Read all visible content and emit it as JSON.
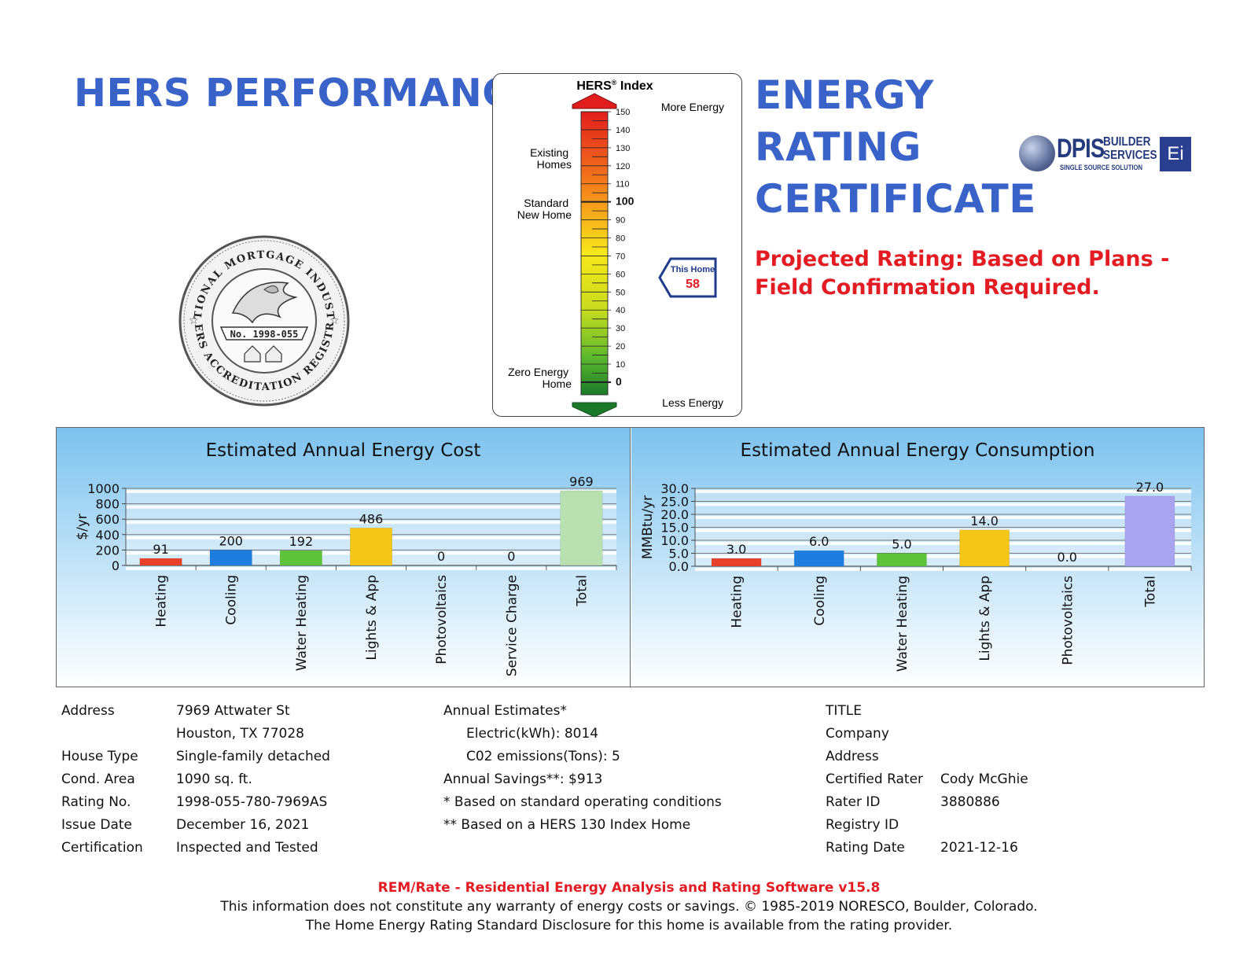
{
  "header": {
    "left_title": "HERS PERFORMANCE",
    "right_title_lines": [
      "ENERGY",
      "RATING",
      "CERTIFICATE"
    ],
    "projected_rating": "Projected Rating: Based on Plans - Field Confirmation Required."
  },
  "logo": {
    "name": "DPIS",
    "tag1": "BUILDER",
    "tag2": "SERVICES",
    "slogan": "SINGLE SOURCE SOLUTION",
    "badge": "Ei"
  },
  "seal": {
    "top_text": "NATIONAL MORTGAGE INDUSTRY",
    "bottom_text": "HERS ACCREDITATION REGISTRY",
    "number": "No. 1998-055"
  },
  "hers_index": {
    "title": "HERS",
    "title_sup": "®",
    "title_suffix": " Index",
    "more_energy": "More Energy",
    "less_energy": "Less Energy",
    "ticks": [
      "150",
      "140",
      "130",
      "120",
      "110",
      "100",
      "90",
      "80",
      "70",
      "60",
      "50",
      "40",
      "30",
      "20",
      "10",
      "0"
    ],
    "side_labels": {
      "existing": [
        "Existing",
        "Homes"
      ],
      "standard": [
        "Standard",
        "New Home"
      ],
      "zero": [
        "Zero Energy",
        "Home"
      ]
    },
    "this_home_label": "This Home",
    "this_home_value": 58
  },
  "cost_chart": {
    "title": "Estimated Annual Energy Cost",
    "ylabel": "$/yr",
    "y_ticks": [
      "1000",
      "800",
      "600",
      "400",
      "200",
      "0"
    ]
  },
  "consumption_chart": {
    "title": "Estimated Annual Energy Consumption",
    "ylabel": "MMBtu/yr",
    "y_ticks": [
      "30.0",
      "25.0",
      "20.0",
      "15.0",
      "10.0",
      "5.0",
      "0.0"
    ]
  },
  "chart_data": [
    {
      "type": "bar",
      "title": "Estimated Annual Energy Cost",
      "ylabel": "$/yr",
      "ylim": [
        0,
        1000
      ],
      "categories": [
        "Heating",
        "Cooling",
        "Water Heating",
        "Lights & App",
        "Photovoltaics",
        "Service Charge",
        "Total"
      ],
      "values": [
        91,
        200,
        192,
        486,
        0,
        0,
        969
      ],
      "colors": [
        "#e8402a",
        "#1e7ee0",
        "#5cc33a",
        "#f5c518",
        "#b0b0b0",
        "#b0b0b0",
        "#b8e0b0"
      ]
    },
    {
      "type": "bar",
      "title": "Estimated Annual Energy Consumption",
      "ylabel": "MMBtu/yr",
      "ylim": [
        0,
        30
      ],
      "categories": [
        "Heating",
        "Cooling",
        "Water Heating",
        "Lights & App",
        "Photovoltaics",
        "Total"
      ],
      "values": [
        3.0,
        6.0,
        5.0,
        14.0,
        0.0,
        27.0
      ],
      "colors": [
        "#e8402a",
        "#1e7ee0",
        "#5cc33a",
        "#f5c518",
        "#b0b0b0",
        "#a9a3f0"
      ]
    }
  ],
  "info_left": [
    {
      "label": "Address",
      "value": "7969 Attwater St"
    },
    {
      "label": "",
      "value": "Houston, TX 77028"
    },
    {
      "label": "House Type",
      "value": "Single-family detached"
    },
    {
      "label": "Cond. Area",
      "value": "1090 sq. ft."
    },
    {
      "label": "Rating No.",
      "value": "1998-055-780-7969AS"
    },
    {
      "label": "Issue Date",
      "value": "December 16, 2021"
    },
    {
      "label": "Certification",
      "value": "Inspected and Tested"
    }
  ],
  "info_mid": {
    "annual_estimates": "Annual Estimates*",
    "electric": "Electric(kWh):  8014",
    "co2": "C02 emissions(Tons): 5",
    "savings": "Annual Savings**:  $913",
    "note1": "* Based on standard operating conditions",
    "note2": "** Based on a HERS 130 Index Home"
  },
  "info_right": [
    {
      "label": "TITLE",
      "value": ""
    },
    {
      "label": "Company",
      "value": ""
    },
    {
      "label": "Address",
      "value": ""
    },
    {
      "label": "Certified Rater",
      "value": "Cody McGhie"
    },
    {
      "label": "Rater ID",
      "value": "3880886"
    },
    {
      "label": "Registry ID",
      "value": ""
    },
    {
      "label": "Rating Date",
      "value": "2021-12-16"
    }
  ],
  "footer": {
    "software": "REM/Rate - Residential Energy Analysis and Rating Software v15.8",
    "disclaimer": "This information does not constitute any warranty of energy costs or savings. © 1985-2019 NORESCO, Boulder, Colorado.",
    "disclosure": "The Home Energy Rating Standard Disclosure for this home is available from the rating provider."
  }
}
